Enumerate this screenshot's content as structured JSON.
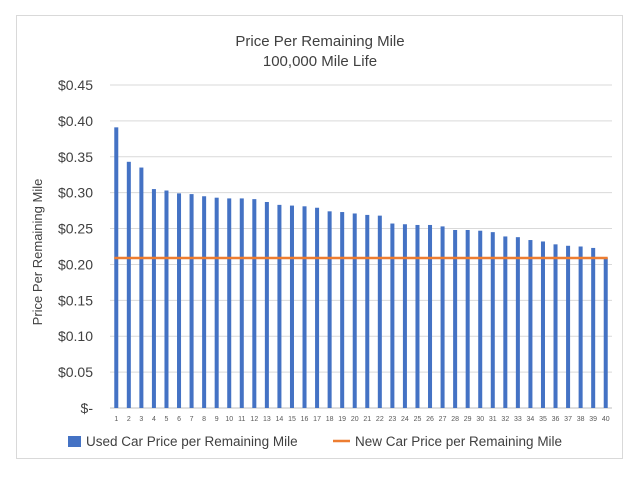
{
  "chart_data": {
    "type": "bar",
    "title": "Price Per Remaining Mile",
    "subtitle": "100,000 Mile Life",
    "xlabel": "",
    "ylabel": "Price Per Remaining Mile",
    "ylim": [
      0,
      0.45
    ],
    "yticks": [
      {
        "value": 0.45,
        "label": "$0.45"
      },
      {
        "value": 0.4,
        "label": "$0.40"
      },
      {
        "value": 0.35,
        "label": "$0.35"
      },
      {
        "value": 0.3,
        "label": "$0.30"
      },
      {
        "value": 0.25,
        "label": "$0.25"
      },
      {
        "value": 0.2,
        "label": "$0.20"
      },
      {
        "value": 0.15,
        "label": "$0.15"
      },
      {
        "value": 0.1,
        "label": "$0.10"
      },
      {
        "value": 0.05,
        "label": "$0.05"
      },
      {
        "value": 0.0,
        "label": "$-"
      }
    ],
    "categories": [
      "1",
      "2",
      "3",
      "4",
      "5",
      "6",
      "7",
      "8",
      "9",
      "10",
      "11",
      "12",
      "13",
      "14",
      "15",
      "16",
      "17",
      "18",
      "19",
      "20",
      "21",
      "22",
      "23",
      "24",
      "25",
      "26",
      "27",
      "28",
      "29",
      "30",
      "31",
      "32",
      "33",
      "34",
      "35",
      "36",
      "37",
      "38",
      "39",
      "40"
    ],
    "series": [
      {
        "name": "Used Car Price per Remaining Mile",
        "kind": "bar",
        "color": "#4472c4",
        "values": [
          0.391,
          0.343,
          0.335,
          0.305,
          0.303,
          0.299,
          0.298,
          0.295,
          0.293,
          0.292,
          0.292,
          0.291,
          0.287,
          0.283,
          0.282,
          0.281,
          0.279,
          0.274,
          0.273,
          0.271,
          0.269,
          0.268,
          0.257,
          0.256,
          0.255,
          0.255,
          0.253,
          0.248,
          0.248,
          0.247,
          0.245,
          0.239,
          0.238,
          0.234,
          0.232,
          0.228,
          0.226,
          0.225,
          0.223,
          0.209
        ]
      },
      {
        "name": "New Car Price per Remaining Mile",
        "kind": "line",
        "color": "#ed7d31",
        "value": 0.209
      }
    ],
    "gridlines": true,
    "legend_position": "bottom"
  }
}
